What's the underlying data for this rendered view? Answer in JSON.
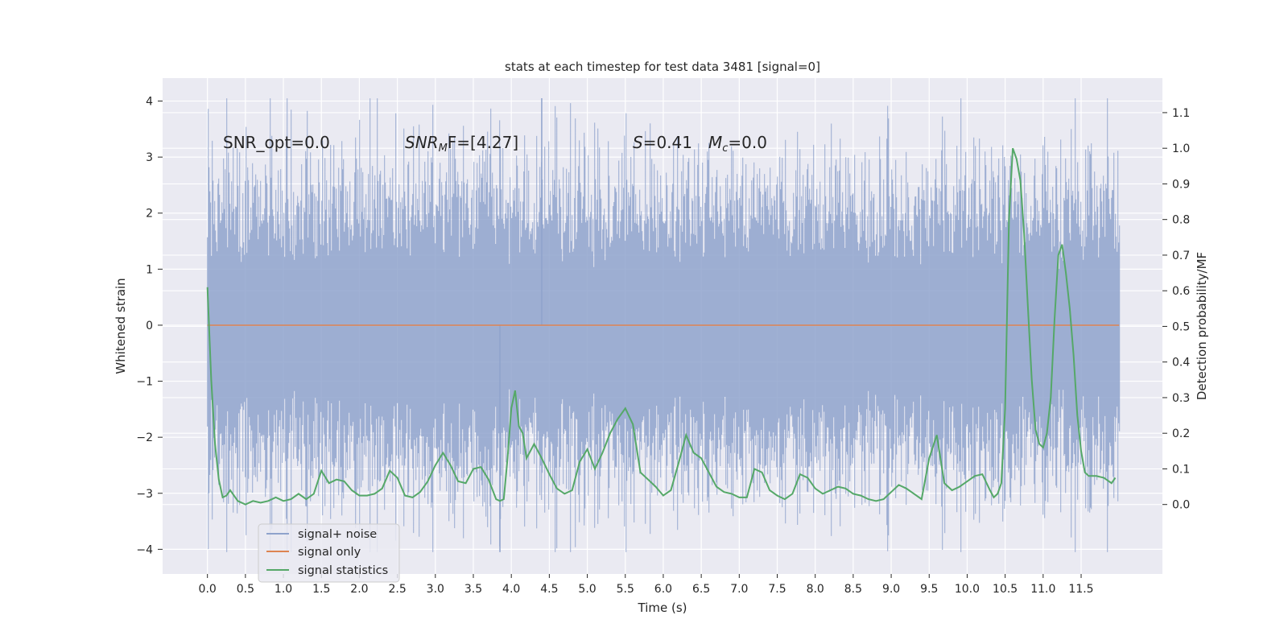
{
  "chart_data": {
    "type": "line",
    "title": "stats at each timestep for test data 3481 [signal=0]",
    "xlabel": "Time (s)",
    "ylabel": "Whitened strain",
    "ylabel_right": "Detection probability/MF",
    "xlim": [
      -0.59,
      12.57
    ],
    "ylim": [
      -4.44,
      4.41
    ],
    "ylim_right": [
      -0.195,
      1.197
    ],
    "x_ticks": [
      0.0,
      0.5,
      1.0,
      1.5,
      2.0,
      2.5,
      3.0,
      3.5,
      4.0,
      4.5,
      5.0,
      5.5,
      6.0,
      6.5,
      7.0,
      7.5,
      8.0,
      8.5,
      9.0,
      9.5,
      10.0,
      10.5,
      11.0,
      11.5
    ],
    "x_tick_labels": [
      "0.0",
      "0.5",
      "1.0",
      "1.5",
      "2.0",
      "2.5",
      "3.0",
      "3.5",
      "4.0",
      "4.5",
      "5.0",
      "5.5",
      "6.0",
      "6.5",
      "7.0",
      "7.5",
      "8.0",
      "8.5",
      "9.0",
      "9.5",
      "10.0",
      "10.5",
      "11.0",
      "11.5"
    ],
    "y_ticks": [
      -4,
      -3,
      -2,
      -1,
      0,
      1,
      2,
      3,
      4
    ],
    "y_tick_labels": [
      "−4",
      "−3",
      "−2",
      "−1",
      "0",
      "1",
      "2",
      "3",
      "4"
    ],
    "y_ticks_right": [
      0.0,
      0.1,
      0.2,
      0.3,
      0.4,
      0.5,
      0.6,
      0.7,
      0.8,
      0.9,
      1.0,
      1.1
    ],
    "y_tick_labels_right": [
      "0.0",
      "0.1",
      "0.2",
      "0.3",
      "0.4",
      "0.5",
      "0.6",
      "0.7",
      "0.8",
      "0.9",
      "1.0",
      "1.1"
    ],
    "grid": true,
    "legend_position": "lower-left",
    "annotations": {
      "snr_opt": "SNR_opt=0.0",
      "snr_mf_main": "SNR",
      "snr_mf_sub": "M",
      "snr_mf_rest": "F=[4.27]",
      "s_stat": "S",
      "s_rest": "=0.41",
      "mc_main": "M",
      "mc_sub": "c",
      "mc_rest": "=0.0"
    },
    "series": [
      {
        "name": "signal+ noise",
        "color": "#8fa3cc",
        "axis": "left",
        "kind": "noise",
        "t_range": [
          0.0,
          12.0
        ],
        "typical_range": [
          -1.3,
          1.3
        ],
        "max": 4.05,
        "min": -4.05
      },
      {
        "name": "signal only",
        "color": "#dd8452",
        "axis": "left",
        "x": [
          0.0,
          12.0
        ],
        "y": [
          0.0,
          0.0
        ]
      },
      {
        "name": "signal statistics",
        "color": "#55a868",
        "axis": "right",
        "x": [
          0.0,
          0.05,
          0.1,
          0.15,
          0.2,
          0.25,
          0.3,
          0.4,
          0.5,
          0.6,
          0.7,
          0.8,
          0.9,
          1.0,
          1.1,
          1.2,
          1.3,
          1.4,
          1.5,
          1.6,
          1.7,
          1.8,
          1.9,
          2.0,
          2.1,
          2.2,
          2.3,
          2.4,
          2.5,
          2.6,
          2.7,
          2.8,
          2.9,
          3.0,
          3.1,
          3.2,
          3.3,
          3.4,
          3.5,
          3.6,
          3.7,
          3.8,
          3.85,
          3.9,
          3.95,
          4.0,
          4.05,
          4.1,
          4.15,
          4.2,
          4.3,
          4.4,
          4.5,
          4.6,
          4.7,
          4.8,
          4.9,
          5.0,
          5.1,
          5.2,
          5.3,
          5.4,
          5.5,
          5.6,
          5.7,
          5.8,
          5.9,
          6.0,
          6.1,
          6.2,
          6.3,
          6.4,
          6.5,
          6.6,
          6.7,
          6.8,
          6.9,
          7.0,
          7.1,
          7.2,
          7.3,
          7.4,
          7.5,
          7.6,
          7.7,
          7.8,
          7.9,
          8.0,
          8.1,
          8.2,
          8.3,
          8.4,
          8.5,
          8.6,
          8.7,
          8.8,
          8.9,
          9.0,
          9.1,
          9.2,
          9.3,
          9.4,
          9.5,
          9.6,
          9.7,
          9.8,
          9.9,
          10.0,
          10.1,
          10.2,
          10.3,
          10.35,
          10.4,
          10.45,
          10.5,
          10.55,
          10.6,
          10.65,
          10.7,
          10.75,
          10.8,
          10.85,
          10.9,
          10.95,
          11.0,
          11.05,
          11.1,
          11.15,
          11.2,
          11.25,
          11.3,
          11.35,
          11.4,
          11.45,
          11.5,
          11.55,
          11.6,
          11.7,
          11.8,
          11.9,
          11.95
        ],
        "y": [
          0.61,
          0.35,
          0.17,
          0.07,
          0.02,
          0.025,
          0.04,
          0.01,
          0.0,
          0.01,
          0.005,
          0.01,
          0.02,
          0.01,
          0.015,
          0.03,
          0.015,
          0.03,
          0.095,
          0.06,
          0.07,
          0.065,
          0.04,
          0.025,
          0.025,
          0.03,
          0.045,
          0.095,
          0.075,
          0.025,
          0.02,
          0.035,
          0.065,
          0.11,
          0.145,
          0.11,
          0.065,
          0.06,
          0.1,
          0.105,
          0.07,
          0.015,
          0.01,
          0.015,
          0.13,
          0.27,
          0.32,
          0.22,
          0.2,
          0.13,
          0.17,
          0.13,
          0.085,
          0.045,
          0.03,
          0.04,
          0.12,
          0.155,
          0.1,
          0.145,
          0.2,
          0.24,
          0.27,
          0.225,
          0.09,
          0.07,
          0.05,
          0.025,
          0.04,
          0.115,
          0.195,
          0.145,
          0.13,
          0.09,
          0.05,
          0.035,
          0.03,
          0.02,
          0.02,
          0.1,
          0.09,
          0.04,
          0.025,
          0.015,
          0.03,
          0.085,
          0.075,
          0.045,
          0.03,
          0.04,
          0.05,
          0.045,
          0.03,
          0.025,
          0.015,
          0.01,
          0.015,
          0.035,
          0.055,
          0.045,
          0.03,
          0.015,
          0.13,
          0.195,
          0.06,
          0.04,
          0.05,
          0.065,
          0.08,
          0.085,
          0.04,
          0.02,
          0.03,
          0.06,
          0.27,
          0.8,
          1.0,
          0.97,
          0.91,
          0.76,
          0.55,
          0.35,
          0.21,
          0.17,
          0.16,
          0.2,
          0.3,
          0.52,
          0.7,
          0.73,
          0.65,
          0.55,
          0.42,
          0.25,
          0.15,
          0.09,
          0.08,
          0.08,
          0.075,
          0.06,
          0.075
        ]
      }
    ]
  }
}
